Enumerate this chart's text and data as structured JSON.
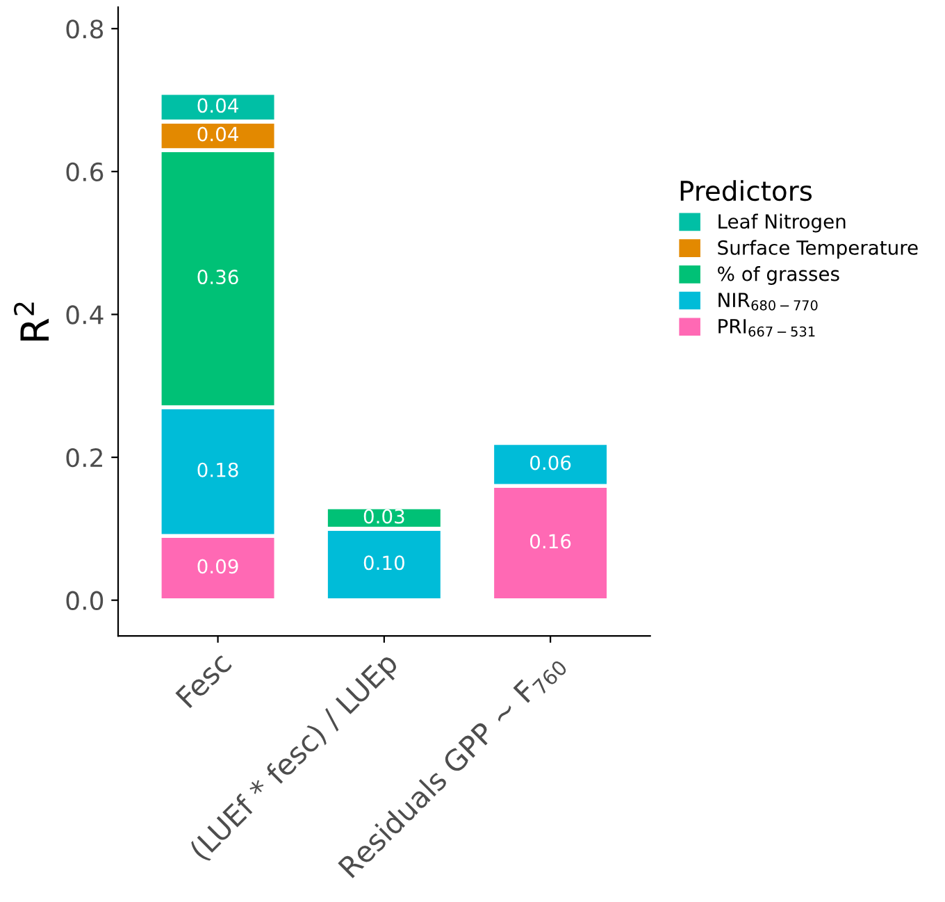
{
  "chart_data": {
    "type": "bar",
    "stacked": true,
    "ylabel": "R$^{2}$",
    "legend_title": "Predictors",
    "legend": "right",
    "categories": [
      "Fesc",
      "(LUEf * fesc) / LUEp",
      "Residuals GPP ~ F$_{760}$"
    ],
    "series": [
      {
        "name": "PRI$_{667−531}$",
        "color": "#ff69b4",
        "values": [
          0.09,
          null,
          0.16
        ],
        "value_labels": [
          "0.09",
          null,
          "0.16"
        ]
      },
      {
        "name": "NIR$_{680−770}$",
        "color": "#00bcd8",
        "values": [
          0.18,
          0.1,
          0.06
        ],
        "value_labels": [
          "0.18",
          "0.10",
          "0.06"
        ]
      },
      {
        "name": "% of grasses",
        "color": "#00c176",
        "values": [
          0.36,
          0.03,
          null
        ],
        "value_labels": [
          "0.36",
          "0.03",
          null
        ]
      },
      {
        "name": "Surface Temperature",
        "color": "#e38900",
        "values": [
          0.04,
          null,
          null
        ],
        "value_labels": [
          "0.04",
          null,
          null
        ]
      },
      {
        "name": "Leaf Nitrogen",
        "color": "#00bfa5",
        "values": [
          0.04,
          null,
          null
        ],
        "value_labels": [
          "0.04",
          null,
          null
        ]
      }
    ],
    "ylim": [
      -0.05,
      0.83
    ],
    "yticks": [
      {
        "value": 0,
        "label": "0.0"
      },
      0.2,
      0.4,
      0.6,
      0.8
    ],
    "grid": false
  }
}
